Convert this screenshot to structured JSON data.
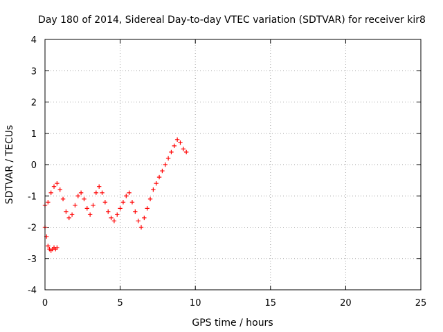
{
  "chart_data": {
    "type": "scatter",
    "title": "Day 180 of 2014, Sidereal Day-to-day VTEC variation (SDTVAR) for receiver kir8",
    "xlabel": "GPS time / hours",
    "ylabel": "SDTVAR / TECUs",
    "xlim": [
      0,
      25
    ],
    "ylim": [
      -4,
      4
    ],
    "xticks": [
      0,
      5,
      10,
      15,
      20,
      25
    ],
    "xtick_labels": [
      "0",
      "5",
      "10",
      "15",
      "20",
      "25"
    ],
    "yticks": [
      -4,
      -3,
      -2,
      -1,
      0,
      1,
      2,
      3,
      4
    ],
    "ytick_labels": [
      "-4",
      "-3",
      "-2",
      "-1",
      "0",
      "1",
      "2",
      "3",
      "4"
    ],
    "grid": true,
    "marker": "plus",
    "color": "#ff0000",
    "series": [
      {
        "name": "track-1",
        "x": [
          0.0,
          0.1,
          0.2,
          0.3,
          0.4,
          0.5,
          0.6,
          0.7,
          0.8
        ],
        "y": [
          -2.0,
          -2.3,
          -2.6,
          -2.7,
          -2.75,
          -2.7,
          -2.65,
          -2.7,
          -2.65
        ]
      },
      {
        "name": "track-2",
        "x": [
          0.0,
          0.2,
          0.4,
          0.6,
          0.8,
          1.0,
          1.2,
          1.4,
          1.6,
          1.8,
          2.0,
          2.2,
          2.4,
          2.6,
          2.8,
          3.0,
          3.2,
          3.4,
          3.6,
          3.8,
          4.0,
          4.2,
          4.4,
          4.6,
          4.8,
          5.0,
          5.2,
          5.4,
          5.6,
          5.8,
          6.0,
          6.2,
          6.4,
          6.6,
          6.8,
          7.0,
          7.2,
          7.4,
          7.6,
          7.8,
          8.0,
          8.2,
          8.4,
          8.6,
          8.8,
          9.0,
          9.2,
          9.4
        ],
        "y": [
          -1.3,
          -1.2,
          -0.9,
          -0.7,
          -0.6,
          -0.8,
          -1.1,
          -1.5,
          -1.7,
          -1.6,
          -1.3,
          -1.0,
          -0.9,
          -1.1,
          -1.4,
          -1.6,
          -1.3,
          -0.9,
          -0.7,
          -0.9,
          -1.2,
          -1.5,
          -1.7,
          -1.8,
          -1.6,
          -1.4,
          -1.2,
          -1.0,
          -0.9,
          -1.2,
          -1.5,
          -1.8,
          -2.0,
          -1.7,
          -1.4,
          -1.1,
          -0.8,
          -0.6,
          -0.4,
          -0.2,
          0.0,
          0.2,
          0.4,
          0.6,
          0.8,
          0.7,
          0.5,
          0.4
        ]
      }
    ]
  }
}
